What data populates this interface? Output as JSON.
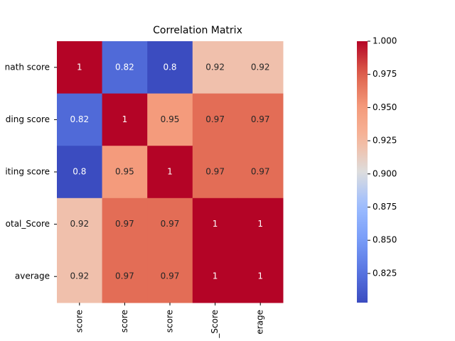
{
  "chart_data": {
    "type": "heatmap",
    "title": "Correlation Matrix",
    "rows": [
      "nath score",
      "ding score",
      "iting score",
      "otal_Score",
      "average"
    ],
    "columns": [
      "score",
      "score",
      "score",
      "_Score",
      "erage"
    ],
    "values": [
      [
        1,
        0.82,
        0.8,
        0.92,
        0.92
      ],
      [
        0.82,
        1,
        0.95,
        0.97,
        0.97
      ],
      [
        0.8,
        0.95,
        1,
        0.97,
        0.97
      ],
      [
        0.92,
        0.97,
        0.97,
        1,
        1
      ],
      [
        0.92,
        0.97,
        0.97,
        1,
        1
      ]
    ],
    "colormap": "coolwarm",
    "clim": [
      0.803,
      1
    ],
    "cticks": [
      0.825,
      {
        "value": 0.85,
        "label": "0.850"
      },
      0.875,
      {
        "value": 0.9,
        "label": "0.900"
      },
      0.925,
      {
        "value": 0.95,
        "label": "0.950"
      },
      0.975,
      {
        "value": 1,
        "label": "1.000"
      }
    ]
  }
}
